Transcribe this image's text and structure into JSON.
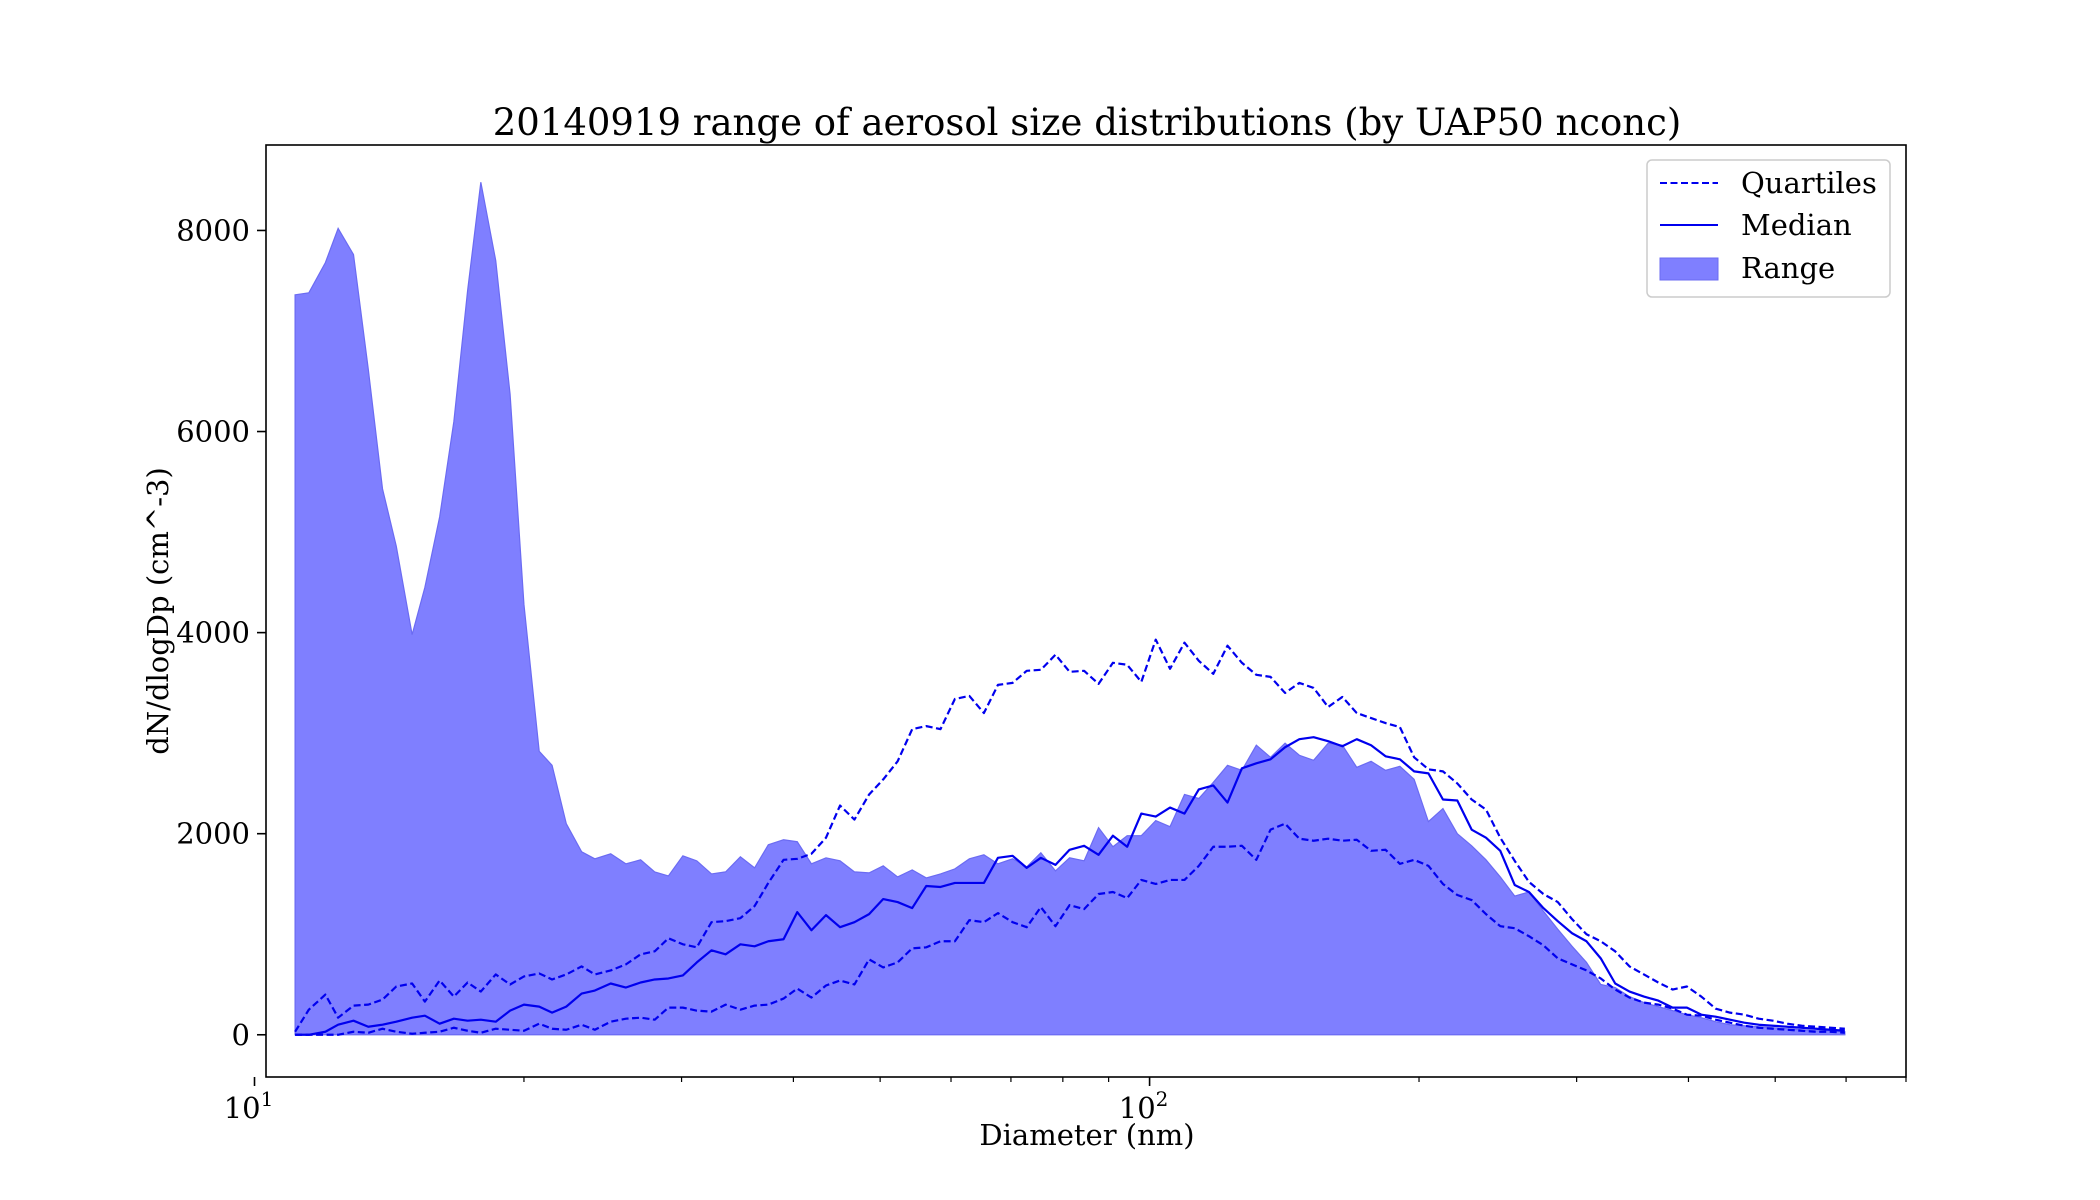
{
  "chart_data": {
    "type": "area",
    "title": "20140919 range of aerosol size distributions (by UAP50 nconc)",
    "xlabel": "Diameter (nm)",
    "ylabel": "dN/dlogDp (cm^-3)",
    "xscale": "log",
    "xlim": [
      10.3,
      700
    ],
    "ylim": [
      -420,
      8850
    ],
    "x_ticks": [
      {
        "value": 10,
        "label": "10^1"
      },
      {
        "value": 100,
        "label": "10^2"
      }
    ],
    "y_ticks": [
      0,
      2000,
      4000,
      6000,
      8000
    ],
    "legend_position": "upper-right",
    "legend": [
      {
        "label": "Quartiles",
        "style": "dashed-line"
      },
      {
        "label": "Median",
        "style": "solid-line"
      },
      {
        "label": "Range",
        "style": "filled-area"
      }
    ],
    "colors": {
      "line": "#0000ee",
      "fill": "#7f7fff",
      "fill_edge": "#6b6bf2"
    },
    "series": [
      {
        "name": "Range",
        "kind": "band",
        "x": [
          11.1,
          11.5,
          12.0,
          12.4,
          12.9,
          13.4,
          13.9,
          14.4,
          15.0,
          15.5,
          16.1,
          16.7,
          17.3,
          17.9,
          18.6,
          19.3,
          20.0,
          20.8,
          21.5,
          22.3,
          23.2,
          24.0,
          25.0,
          26.0,
          27.0,
          28.0,
          29.0,
          30.1,
          31.2,
          32.4,
          33.6,
          34.9,
          36.2,
          37.5,
          39.0,
          40.4,
          41.9,
          43.5,
          45.1,
          46.8,
          48.6,
          50.4,
          52.3,
          54.3,
          56.3,
          58.4,
          60.6,
          62.9,
          65.3,
          67.7,
          70.3,
          72.9,
          75.6,
          78.5,
          81.4,
          84.5,
          87.7,
          91.0,
          94.4,
          97.9,
          101.6,
          105.4,
          109.4,
          113.5,
          117.8,
          122.2,
          126.8,
          131.6,
          136.5,
          141.7,
          147.0,
          152.5,
          158.3,
          164.2,
          170.4,
          176.8,
          183.5,
          190.4,
          197.5,
          204.9,
          212.7,
          220.7,
          229.0,
          237.6,
          246.5,
          255.8,
          265.4,
          275.4,
          285.8,
          296.5,
          307.7,
          319.2,
          331.3,
          343.7,
          356.7,
          370.1,
          384.0,
          398.4,
          413.4,
          429.0,
          445.1,
          461.8,
          479.2,
          497.2,
          515.9,
          535.3,
          555.5,
          576.4,
          598.1
        ],
        "upper": [
          7360,
          7380,
          7680,
          8020,
          7760,
          6620,
          5430,
          4860,
          3980,
          4450,
          5150,
          6100,
          7400,
          8480,
          7700,
          6370,
          4280,
          2820,
          2680,
          2100,
          1820,
          1750,
          1800,
          1700,
          1740,
          1620,
          1580,
          1780,
          1730,
          1600,
          1620,
          1770,
          1660,
          1890,
          1940,
          1920,
          1700,
          1760,
          1730,
          1620,
          1610,
          1680,
          1570,
          1640,
          1560,
          1600,
          1650,
          1750,
          1790,
          1700,
          1750,
          1670,
          1810,
          1630,
          1760,
          1730,
          2060,
          1870,
          1980,
          1980,
          2130,
          2070,
          2390,
          2350,
          2510,
          2680,
          2630,
          2880,
          2760,
          2900,
          2780,
          2730,
          2900,
          2880,
          2660,
          2720,
          2630,
          2670,
          2540,
          2120,
          2250,
          2000,
          1880,
          1740,
          1570,
          1380,
          1420,
          1230,
          1050,
          880,
          720,
          500,
          470,
          380,
          320,
          280,
          240,
          200,
          170,
          130,
          100,
          90,
          80,
          70,
          60,
          50,
          40,
          40,
          30
        ],
        "lower": [
          0,
          0,
          0,
          0,
          0,
          0,
          0,
          0,
          0,
          0,
          0,
          0,
          0,
          0,
          0,
          0,
          0,
          0,
          0,
          0,
          0,
          0,
          0,
          0,
          0,
          0,
          0,
          0,
          0,
          0,
          0,
          0,
          0,
          0,
          0,
          0,
          0,
          0,
          0,
          0,
          0,
          0,
          0,
          0,
          0,
          0,
          0,
          0,
          0,
          0,
          0,
          0,
          0,
          0,
          0,
          0,
          0,
          0,
          0,
          0,
          0,
          0,
          0,
          0,
          0,
          0,
          0,
          0,
          0,
          0,
          0,
          0,
          0,
          0,
          0,
          0,
          0,
          0,
          0,
          0,
          0,
          0,
          0,
          0,
          0,
          0,
          0,
          0,
          0,
          0,
          0,
          0,
          0,
          0,
          0,
          0,
          0,
          0,
          0,
          0,
          0,
          0,
          0,
          0,
          0,
          0,
          0,
          0,
          0
        ]
      },
      {
        "name": "Median",
        "kind": "line",
        "x": [
          11.1,
          11.5,
          12.0,
          12.4,
          12.9,
          13.4,
          13.9,
          14.4,
          15.0,
          15.5,
          16.1,
          16.7,
          17.3,
          17.9,
          18.6,
          19.3,
          20.0,
          20.8,
          21.5,
          22.3,
          23.2,
          24.0,
          25.0,
          26.0,
          27.0,
          28.0,
          29.0,
          30.1,
          31.2,
          32.4,
          33.6,
          34.9,
          36.2,
          37.5,
          39.0,
          40.4,
          41.9,
          43.5,
          45.1,
          46.8,
          48.6,
          50.4,
          52.3,
          54.3,
          56.3,
          58.4,
          60.6,
          62.9,
          65.3,
          67.7,
          70.3,
          72.9,
          75.6,
          78.5,
          81.4,
          84.5,
          87.7,
          91.0,
          94.4,
          97.9,
          101.6,
          105.4,
          109.4,
          113.5,
          117.8,
          122.2,
          126.8,
          131.6,
          136.5,
          141.7,
          147.0,
          152.5,
          158.3,
          164.2,
          170.4,
          176.8,
          183.5,
          190.4,
          197.5,
          204.9,
          212.7,
          220.7,
          229.0,
          237.6,
          246.5,
          255.8,
          265.4,
          275.4,
          285.8,
          296.5,
          307.7,
          319.2,
          331.3,
          343.7,
          356.7,
          370.1,
          384.0,
          398.4,
          413.4,
          429.0,
          445.1,
          461.8,
          479.2,
          497.2,
          515.9,
          535.3,
          555.5,
          576.4,
          598.1
        ],
        "y": [
          0,
          0,
          30,
          100,
          140,
          80,
          100,
          130,
          170,
          190,
          110,
          160,
          140,
          150,
          130,
          240,
          300,
          280,
          220,
          280,
          410,
          440,
          510,
          470,
          520,
          550,
          560,
          590,
          720,
          840,
          800,
          900,
          880,
          930,
          950,
          1220,
          1040,
          1190,
          1070,
          1120,
          1200,
          1350,
          1320,
          1260,
          1480,
          1470,
          1510,
          1510,
          1510,
          1760,
          1780,
          1660,
          1760,
          1690,
          1840,
          1880,
          1790,
          1980,
          1870,
          2200,
          2170,
          2260,
          2200,
          2440,
          2480,
          2310,
          2650,
          2700,
          2740,
          2860,
          2940,
          2960,
          2920,
          2870,
          2940,
          2880,
          2770,
          2740,
          2620,
          2600,
          2340,
          2330,
          2040,
          1960,
          1830,
          1490,
          1420,
          1260,
          1130,
          1010,
          930,
          760,
          510,
          430,
          380,
          340,
          270,
          270,
          200,
          180,
          150,
          120,
          100,
          90,
          80,
          70,
          60,
          50,
          40
        ],
        "style": "solid"
      },
      {
        "name": "Upper quartile",
        "kind": "line",
        "x": [
          11.1,
          11.5,
          12.0,
          12.4,
          12.9,
          13.4,
          13.9,
          14.4,
          15.0,
          15.5,
          16.1,
          16.7,
          17.3,
          17.9,
          18.6,
          19.3,
          20.0,
          20.8,
          21.5,
          22.3,
          23.2,
          24.0,
          25.0,
          26.0,
          27.0,
          28.0,
          29.0,
          30.1,
          31.2,
          32.4,
          33.6,
          34.9,
          36.2,
          37.5,
          39.0,
          40.4,
          41.9,
          43.5,
          45.1,
          46.8,
          48.6,
          50.4,
          52.3,
          54.3,
          56.3,
          58.4,
          60.6,
          62.9,
          65.3,
          67.7,
          70.3,
          72.9,
          75.6,
          78.5,
          81.4,
          84.5,
          87.7,
          91.0,
          94.4,
          97.9,
          101.6,
          105.4,
          109.4,
          113.5,
          117.8,
          122.2,
          126.8,
          131.6,
          136.5,
          141.7,
          147.0,
          152.5,
          158.3,
          164.2,
          170.4,
          176.8,
          183.5,
          190.4,
          197.5,
          204.9,
          212.7,
          220.7,
          229.0,
          237.6,
          246.5,
          255.8,
          265.4,
          275.4,
          285.8,
          296.5,
          307.7,
          319.2,
          331.3,
          343.7,
          356.7,
          370.1,
          384.0,
          398.4,
          413.4,
          429.0,
          445.1,
          461.8,
          479.2,
          497.2,
          515.9,
          535.3,
          555.5,
          576.4,
          598.1
        ],
        "y": [
          30,
          250,
          400,
          170,
          290,
          300,
          350,
          480,
          510,
          330,
          540,
          380,
          520,
          430,
          600,
          500,
          580,
          610,
          550,
          600,
          680,
          600,
          640,
          700,
          800,
          830,
          960,
          900,
          870,
          1120,
          1130,
          1160,
          1280,
          1510,
          1740,
          1750,
          1800,
          1960,
          2280,
          2140,
          2390,
          2540,
          2720,
          3040,
          3070,
          3040,
          3340,
          3370,
          3200,
          3480,
          3500,
          3620,
          3630,
          3780,
          3610,
          3620,
          3490,
          3700,
          3680,
          3510,
          3930,
          3640,
          3900,
          3720,
          3590,
          3870,
          3700,
          3580,
          3560,
          3400,
          3500,
          3450,
          3260,
          3360,
          3200,
          3150,
          3100,
          3060,
          2760,
          2640,
          2620,
          2500,
          2340,
          2240,
          1960,
          1730,
          1520,
          1400,
          1320,
          1150,
          1000,
          930,
          830,
          680,
          600,
          520,
          450,
          480,
          380,
          260,
          220,
          200,
          160,
          140,
          110,
          90,
          80,
          70,
          60
        ],
        "style": "dashed"
      },
      {
        "name": "Lower quartile",
        "kind": "line",
        "x": [
          11.1,
          11.5,
          12.0,
          12.4,
          12.9,
          13.4,
          13.9,
          14.4,
          15.0,
          15.5,
          16.1,
          16.7,
          17.3,
          17.9,
          18.6,
          19.3,
          20.0,
          20.8,
          21.5,
          22.3,
          23.2,
          24.0,
          25.0,
          26.0,
          27.0,
          28.0,
          29.0,
          30.1,
          31.2,
          32.4,
          33.6,
          34.9,
          36.2,
          37.5,
          39.0,
          40.4,
          41.9,
          43.5,
          45.1,
          46.8,
          48.6,
          50.4,
          52.3,
          54.3,
          56.3,
          58.4,
          60.6,
          62.9,
          65.3,
          67.7,
          70.3,
          72.9,
          75.6,
          78.5,
          81.4,
          84.5,
          87.7,
          91.0,
          94.4,
          97.9,
          101.6,
          105.4,
          109.4,
          113.5,
          117.8,
          122.2,
          126.8,
          131.6,
          136.5,
          141.7,
          147.0,
          152.5,
          158.3,
          164.2,
          170.4,
          176.8,
          183.5,
          190.4,
          197.5,
          204.9,
          212.7,
          220.7,
          229.0,
          237.6,
          246.5,
          255.8,
          265.4,
          275.4,
          285.8,
          296.5,
          307.7,
          319.2,
          331.3,
          343.7,
          356.7,
          370.1,
          384.0,
          398.4,
          413.4,
          429.0,
          445.1,
          461.8,
          479.2,
          497.2,
          515.9,
          535.3,
          555.5,
          576.4,
          598.1
        ],
        "y": [
          0,
          0,
          0,
          0,
          30,
          20,
          60,
          30,
          10,
          20,
          30,
          70,
          40,
          20,
          60,
          50,
          40,
          110,
          60,
          50,
          100,
          50,
          130,
          160,
          170,
          150,
          270,
          270,
          240,
          230,
          300,
          250,
          290,
          300,
          360,
          460,
          370,
          490,
          540,
          500,
          750,
          670,
          720,
          860,
          870,
          930,
          930,
          1140,
          1120,
          1210,
          1120,
          1070,
          1270,
          1080,
          1290,
          1250,
          1400,
          1420,
          1360,
          1540,
          1500,
          1540,
          1540,
          1680,
          1870,
          1870,
          1880,
          1740,
          2040,
          2100,
          1950,
          1930,
          1950,
          1930,
          1940,
          1830,
          1840,
          1700,
          1740,
          1680,
          1500,
          1390,
          1340,
          1200,
          1080,
          1060,
          980,
          890,
          760,
          700,
          640,
          560,
          450,
          370,
          320,
          300,
          260,
          200,
          190,
          150,
          120,
          90,
          70,
          60,
          50,
          40,
          30,
          30,
          20
        ],
        "style": "dashed"
      }
    ]
  }
}
